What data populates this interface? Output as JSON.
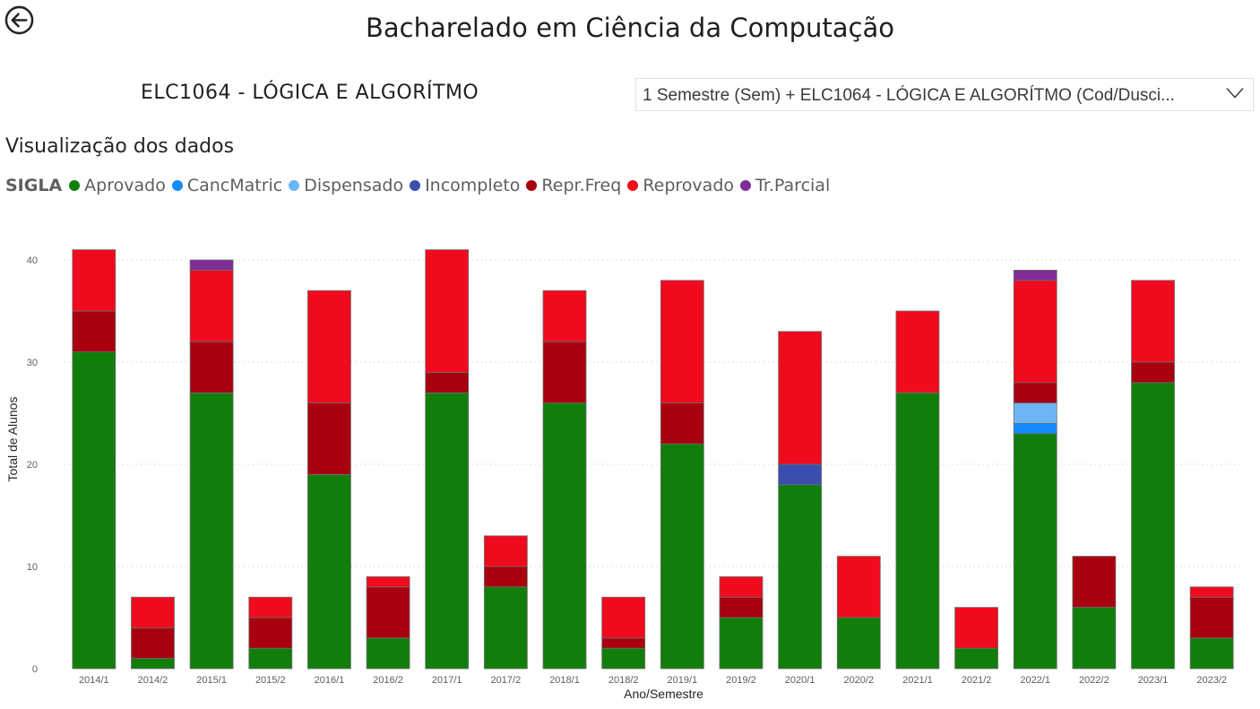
{
  "header": {
    "back_icon": "back-arrow-circle-icon",
    "title": "Bacharelado em Ciência da Computação",
    "subtitle": "ELC1064 - LÓGICA E ALGORÍTMO"
  },
  "filter": {
    "value": "1 Semestre (Sem) + ELC1064 - LÓGICA E ALGORÍTMO (Cod/Dusci...",
    "icon": "chevron-down-icon"
  },
  "section_title": "Visualização dos dados",
  "legend": {
    "title": "SIGLA",
    "items": [
      {
        "label": "Aprovado",
        "color": "#117e0b"
      },
      {
        "label": "CancMatric",
        "color": "#118dff"
      },
      {
        "label": "Dispensado",
        "color": "#6cb6f5"
      },
      {
        "label": "Incompleto",
        "color": "#3b4eb0"
      },
      {
        "label": "Repr.Freq",
        "color": "#a8000f"
      },
      {
        "label": "Reprovado",
        "color": "#f00a1e"
      },
      {
        "label": "Tr.Parcial",
        "color": "#7e2d97"
      }
    ]
  },
  "chart_data": {
    "type": "bar",
    "stacked": true,
    "xlabel": "Ano/Semestre",
    "ylabel": "Total de Alunos",
    "ylim": [
      0,
      42
    ],
    "yticks": [
      0,
      10,
      20,
      30,
      40
    ],
    "grid": true,
    "legend_position": "top-left",
    "categories": [
      "2014/1",
      "2014/2",
      "2015/1",
      "2015/2",
      "2016/1",
      "2016/2",
      "2017/1",
      "2017/2",
      "2018/1",
      "2018/2",
      "2019/1",
      "2019/2",
      "2020/1",
      "2020/2",
      "2021/1",
      "2021/2",
      "2022/1",
      "2022/2",
      "2023/1",
      "2023/2"
    ],
    "series": [
      {
        "name": "Aprovado",
        "color": "#117e0b",
        "values": [
          31,
          1,
          27,
          2,
          19,
          3,
          27,
          8,
          26,
          2,
          22,
          5,
          18,
          5,
          27,
          2,
          23,
          6,
          28,
          3
        ]
      },
      {
        "name": "CancMatric",
        "color": "#118dff",
        "values": [
          0,
          0,
          0,
          0,
          0,
          0,
          0,
          0,
          0,
          0,
          0,
          0,
          0,
          0,
          0,
          0,
          1,
          0,
          0,
          0
        ]
      },
      {
        "name": "Dispensado",
        "color": "#6cb6f5",
        "values": [
          0,
          0,
          0,
          0,
          0,
          0,
          0,
          0,
          0,
          0,
          0,
          0,
          0,
          0,
          0,
          0,
          2,
          0,
          0,
          0
        ]
      },
      {
        "name": "Incompleto",
        "color": "#3b4eb0",
        "values": [
          0,
          0,
          0,
          0,
          0,
          0,
          0,
          0,
          0,
          0,
          0,
          0,
          2,
          0,
          0,
          0,
          0,
          0,
          0,
          0
        ]
      },
      {
        "name": "Repr.Freq",
        "color": "#a8000f",
        "values": [
          4,
          3,
          5,
          3,
          7,
          5,
          2,
          2,
          6,
          1,
          4,
          2,
          0,
          0,
          0,
          0,
          2,
          5,
          2,
          4
        ]
      },
      {
        "name": "Reprovado",
        "color": "#f00a1e",
        "values": [
          6,
          3,
          7,
          2,
          11,
          1,
          12,
          3,
          5,
          4,
          12,
          2,
          13,
          6,
          8,
          4,
          10,
          0,
          8,
          1
        ]
      },
      {
        "name": "Tr.Parcial",
        "color": "#7e2d97",
        "values": [
          0,
          0,
          1,
          0,
          0,
          0,
          0,
          0,
          0,
          0,
          0,
          0,
          0,
          0,
          0,
          0,
          1,
          0,
          0,
          0
        ]
      }
    ]
  }
}
